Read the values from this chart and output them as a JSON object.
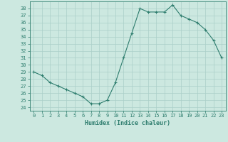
{
  "x": [
    0,
    1,
    2,
    3,
    4,
    5,
    6,
    7,
    8,
    9,
    10,
    11,
    12,
    13,
    14,
    15,
    16,
    17,
    18,
    19,
    20,
    21,
    22,
    23
  ],
  "y": [
    29.0,
    28.5,
    27.5,
    27.0,
    26.5,
    26.0,
    25.5,
    24.5,
    24.5,
    25.0,
    27.5,
    31.0,
    34.5,
    38.0,
    37.5,
    37.5,
    37.5,
    38.5,
    37.0,
    36.5,
    36.0,
    35.0,
    33.5,
    31.0
  ],
  "xlabel": "Humidex (Indice chaleur)",
  "line_color": "#2e7d6e",
  "marker": "+",
  "bg_color": "#cce8e0",
  "grid_color": "#aacfc8",
  "ylim": [
    23.5,
    39.0
  ],
  "xlim": [
    -0.5,
    23.5
  ],
  "yticks": [
    24,
    25,
    26,
    27,
    28,
    29,
    30,
    31,
    32,
    33,
    34,
    35,
    36,
    37,
    38
  ],
  "xticks": [
    0,
    1,
    2,
    3,
    4,
    5,
    6,
    7,
    8,
    9,
    10,
    11,
    12,
    13,
    14,
    15,
    16,
    17,
    18,
    19,
    20,
    21,
    22,
    23
  ],
  "tick_fontsize": 5.0,
  "xlabel_fontsize": 6.0,
  "linewidth": 0.8,
  "markersize": 3.5,
  "markeredgewidth": 0.8
}
